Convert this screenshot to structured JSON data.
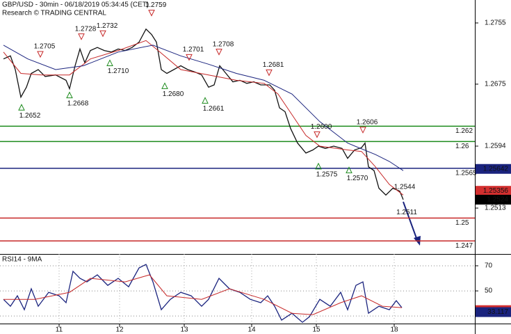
{
  "chart_data": [
    {
      "type": "line",
      "title": "GBP/USD - 30min - 06/18/2019 05:34:45 (CET)",
      "subtitle": "Research © TRADING CENTRAL",
      "xlim": [
        0,
        341.5
      ],
      "ylim": [
        1.2453,
        1.2785
      ],
      "yticks": [
        1.2755,
        1.2675,
        1.2594,
        1.2513
      ],
      "xticks": [
        {
          "value": 42.5,
          "label": "11"
        },
        {
          "value": 86,
          "label": "12"
        },
        {
          "value": 132.5,
          "label": "13"
        },
        {
          "value": 181,
          "label": "14"
        },
        {
          "value": 227.5,
          "label": "15"
        },
        {
          "value": 283.5,
          "label": "18"
        }
      ],
      "series": [
        {
          "color": "#111111",
          "x": [
            2.5,
            7.5,
            11,
            15,
            19,
            22.5,
            27.5,
            32.5,
            40,
            47.5,
            50,
            54,
            57.5,
            61,
            65,
            70,
            75,
            80,
            85,
            90,
            95,
            100,
            105,
            109,
            112.5,
            116,
            120,
            125,
            130,
            135,
            140,
            145,
            150,
            154,
            158,
            162.5,
            167.5,
            172.5,
            177.5,
            182.5,
            187.5,
            194,
            197.5,
            201,
            205,
            209,
            214,
            220,
            225,
            229,
            234,
            240,
            246,
            250,
            255,
            260,
            262.5,
            265,
            269,
            272.5,
            277.5,
            282.5,
            287.5,
            290
          ],
          "values": [
            1.2708,
            1.2712,
            1.2694,
            1.2658,
            1.2671,
            1.2689,
            1.2694,
            1.2685,
            1.2687,
            1.268,
            1.2669,
            1.2699,
            1.2721,
            1.2703,
            1.2719,
            1.2723,
            1.2719,
            1.2717,
            1.2721,
            1.2719,
            1.2723,
            1.273,
            1.2747,
            1.274,
            1.273,
            1.2694,
            1.2689,
            1.2694,
            1.2699,
            1.2694,
            1.2691,
            1.2687,
            1.2671,
            1.2674,
            1.2699,
            1.2689,
            1.2678,
            1.268,
            1.2676,
            1.2678,
            1.2674,
            1.2674,
            1.2667,
            1.2644,
            1.2639,
            1.2617,
            1.2598,
            1.2585,
            1.2589,
            1.2594,
            1.2591,
            1.2594,
            1.2591,
            1.2578,
            1.2589,
            1.2592,
            1.2598,
            1.2567,
            1.2562,
            1.2539,
            1.253,
            1.2539,
            1.2535,
            1.2524
          ]
        },
        {
          "color": "#c62828",
          "x": [
            2.5,
            15,
            30,
            50,
            65,
            85,
            105,
            115,
            130,
            150,
            170,
            190,
            200,
            210,
            220,
            230,
            250,
            260,
            270,
            280,
            290
          ],
          "values": [
            1.2717,
            1.2689,
            1.2687,
            1.2687,
            1.2708,
            1.2719,
            1.2732,
            1.2717,
            1.2694,
            1.2687,
            1.268,
            1.2676,
            1.2662,
            1.2635,
            1.2608,
            1.2594,
            1.2589,
            1.2587,
            1.2567,
            1.2544,
            1.253
          ]
        },
        {
          "color": "#1a237e",
          "x": [
            2.5,
            20,
            40,
            60,
            85,
            110,
            130,
            150,
            170,
            190,
            210,
            230,
            250,
            270,
            280,
            290
          ],
          "values": [
            1.2726,
            1.2708,
            1.2694,
            1.2699,
            1.2717,
            1.2726,
            1.2712,
            1.2701,
            1.2689,
            1.268,
            1.2662,
            1.2626,
            1.2598,
            1.2583,
            1.2574,
            1.2562
          ]
        }
      ],
      "levels": [
        {
          "value": 1.262,
          "color": "#1b8a1b"
        },
        {
          "value": 1.26,
          "color": "#1b8a1b"
        },
        {
          "value": 1.2565,
          "color": "#1a237e"
        },
        {
          "value": 1.25,
          "color": "#c62828"
        },
        {
          "value": 1.247,
          "color": "#c62828"
        }
      ],
      "peaks": [
        {
          "x": 29,
          "value": 1.2705,
          "label": "1.2705"
        },
        {
          "x": 58.5,
          "value": 1.2728,
          "label": "1.2728"
        },
        {
          "x": 74,
          "value": 1.2732,
          "label": "1.2732"
        },
        {
          "x": 109,
          "value": 1.2759,
          "label": "1.2759"
        },
        {
          "x": 136,
          "value": 1.2701,
          "label": "1.2701"
        },
        {
          "x": 157.5,
          "value": 1.2708,
          "label": "1.2708"
        },
        {
          "x": 193.5,
          "value": 1.2681,
          "label": "1.2681"
        },
        {
          "x": 228,
          "value": 1.26,
          "label": "1.2600"
        },
        {
          "x": 261,
          "value": 1.2606,
          "label": "1.2606"
        }
      ],
      "troughs": [
        {
          "x": 15.5,
          "value": 1.2652,
          "label": "1.2652"
        },
        {
          "x": 50,
          "value": 1.2668,
          "label": "1.2668"
        },
        {
          "x": 79,
          "value": 1.271,
          "label": "1.2710"
        },
        {
          "x": 118.5,
          "value": 1.268,
          "label": "1.2680"
        },
        {
          "x": 147.5,
          "value": 1.2661,
          "label": "1.2661"
        },
        {
          "x": 229,
          "value": 1.2575,
          "label": "1.2575"
        },
        {
          "x": 251,
          "value": 1.257,
          "label": "1.2570"
        }
      ],
      "notes": [
        {
          "x": 291,
          "value": 1.2544,
          "label": "1.2544"
        },
        {
          "x": 292.5,
          "value": 1.2511,
          "label": "1.2511"
        }
      ],
      "price_tags": [
        {
          "value": 1.25642,
          "color": "#1a237e"
        },
        {
          "value": 1.25356,
          "color": "#d32f2f"
        },
        {
          "value": 1.2524,
          "color": "#000000"
        }
      ]
    },
    {
      "type": "line",
      "title": "RSI14 - 9MA",
      "xlim": [
        0,
        341.5
      ],
      "ylim": [
        24,
        79.4
      ],
      "yticks": [
        70,
        50
      ],
      "grid_values": [
        70,
        50,
        30
      ],
      "series": [
        {
          "color": "#1a237e",
          "x": [
            2.5,
            7.5,
            12.5,
            17.5,
            22.5,
            27.5,
            35,
            42.5,
            47.5,
            52.5,
            57.5,
            62.5,
            70,
            77.5,
            85,
            92.5,
            100,
            105,
            110,
            116,
            122.5,
            130,
            137.5,
            145,
            150,
            157.5,
            165,
            172.5,
            180,
            187.5,
            192.5,
            197.5,
            202.5,
            210,
            217.5,
            222.5,
            230,
            237.5,
            245,
            250,
            256,
            261,
            265,
            272.5,
            280,
            285,
            289
          ],
          "values": [
            43.3,
            37.8,
            46.1,
            35,
            51.7,
            37.8,
            48.9,
            46.1,
            40.6,
            65.6,
            60,
            57.2,
            62.8,
            54.4,
            60,
            53.3,
            68.3,
            71.1,
            57.2,
            35,
            43.3,
            48.9,
            46.1,
            37.8,
            43.3,
            60,
            51.7,
            48.9,
            43.3,
            40.6,
            46.1,
            37.8,
            26.7,
            32.2,
            25,
            29.4,
            43.3,
            37.8,
            48.9,
            35,
            54.4,
            57.2,
            32.2,
            37.8,
            35,
            42.2,
            36.7
          ]
        },
        {
          "color": "#c62828",
          "x": [
            2.5,
            25,
            50,
            65,
            90,
            107.5,
            120,
            145,
            165,
            190,
            210,
            225,
            245,
            260,
            275,
            289
          ],
          "values": [
            43.3,
            43.3,
            48.9,
            60,
            57.2,
            62.8,
            46.1,
            43.3,
            51.7,
            43.3,
            32.2,
            31.1,
            40.6,
            46.1,
            37.8,
            36.7
          ]
        }
      ],
      "price_tags": [
        {
          "value": 34.707,
          "color": "#d32f2f"
        },
        {
          "value": 33.117,
          "color": "#1a237e"
        }
      ]
    }
  ]
}
